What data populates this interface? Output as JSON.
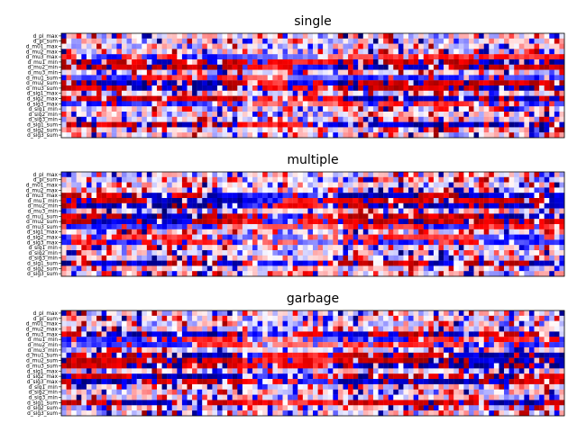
{
  "chart_data": [
    {
      "type": "heatmap",
      "title": "single",
      "colormap": "seismic",
      "value_range": [
        -1,
        1
      ],
      "x_ticks_visible": false,
      "num_columns": 100,
      "seed": 11,
      "row_labels": [
        "d_pl_max",
        "d_pl_sum",
        "d_m01_max",
        "d_mu2_max",
        "d_mu3_max",
        "d_mu1_min",
        "d_mu2_min",
        "d_mu3_min",
        "d_mu1_sum",
        "d_mu2_sum",
        "d_mu3_sum",
        "d_sig1_max",
        "d_sig2_max",
        "d_sig3_max",
        "d_sig1_min",
        "d_sig2_min",
        "d_sig3_min",
        "d_sig1_sum",
        "d_sig2_sum",
        "d_sig3_sum"
      ]
    },
    {
      "type": "heatmap",
      "title": "multiple",
      "colormap": "seismic",
      "value_range": [
        -1,
        1
      ],
      "x_ticks_visible": false,
      "num_columns": 100,
      "seed": 29,
      "row_labels": [
        "d_pl_max",
        "d_pl_sum",
        "d_m01_max",
        "d_mu2_max",
        "d_mu3_max",
        "d_mu1_min",
        "d_mu2_min",
        "d_mu3_min",
        "d_mu1_sum",
        "d_mu2_sum",
        "d_mu3_sum",
        "d_sig1_max",
        "d_sig2_max",
        "d_sig3_max",
        "d_sig1_min",
        "d_sig2_min",
        "d_sig3_min",
        "d_sig1_sum",
        "d_sig2_sum",
        "d_sig3_sum"
      ]
    },
    {
      "type": "heatmap",
      "title": "garbage",
      "colormap": "seismic",
      "value_range": [
        -1,
        1
      ],
      "x_ticks_visible": false,
      "num_columns": 100,
      "seed": 47,
      "row_labels": [
        "d_pl_max",
        "d_pl_sum",
        "d_m01_max",
        "d_mu2_max",
        "d_mu3_max",
        "d_mu1_min",
        "d_mu2_min",
        "d_mu3_min",
        "d_mu1_sum",
        "d_mu2_sum",
        "d_mu3_sum",
        "d_sig1_max",
        "d_sig2_max",
        "d_sig3_max",
        "d_sig1_min",
        "d_sig2_min",
        "d_sig3_min",
        "d_sig1_sum",
        "d_sig2_sum",
        "d_sig3_sum"
      ]
    }
  ]
}
